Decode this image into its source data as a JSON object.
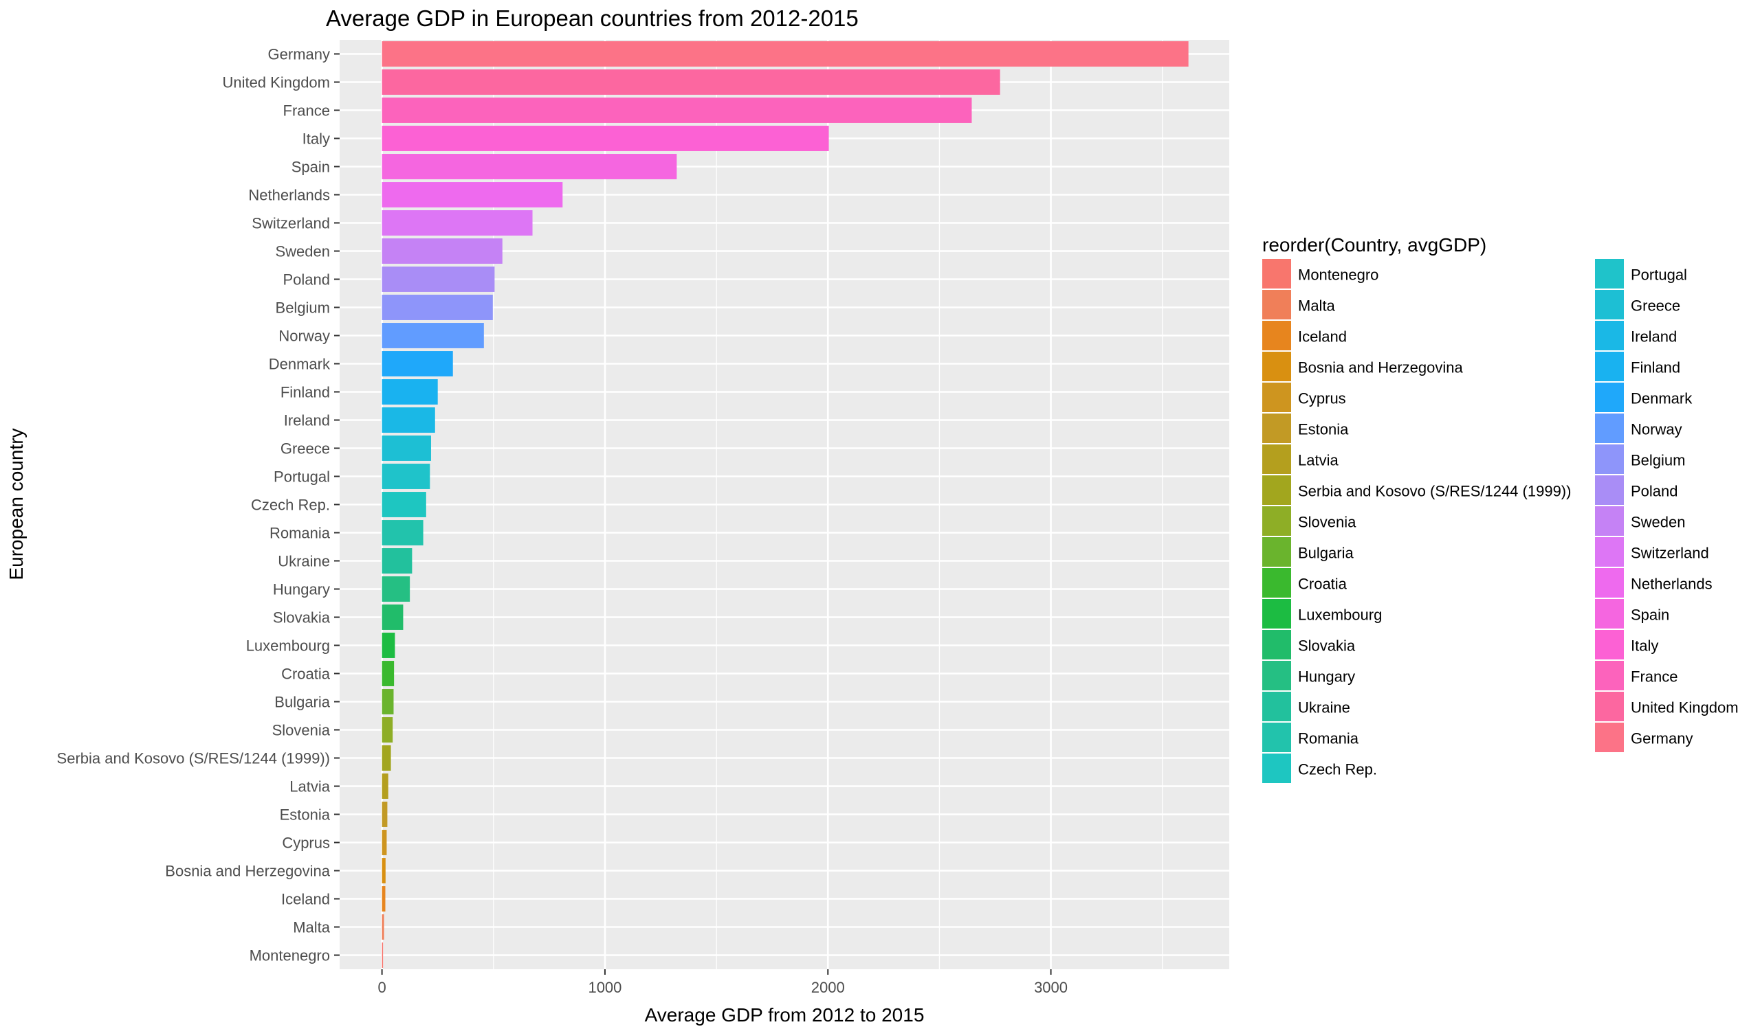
{
  "chart_data": {
    "type": "bar",
    "orientation": "horizontal",
    "title": "Average GDP in European countries from 2012-2015",
    "xlabel": "Average GDP from 2012 to 2015",
    "ylabel": "European country",
    "xlim": [
      -190,
      3800
    ],
    "x_ticks": [
      0,
      1000,
      2000,
      3000
    ],
    "x_tick_labels": [
      "0",
      "1000",
      "2000",
      "3000"
    ],
    "grid": true,
    "legend": {
      "title": "reorder(Country, avgGDP)",
      "placement": "right"
    },
    "categories": [
      "Montenegro",
      "Malta",
      "Iceland",
      "Bosnia and Herzegovina",
      "Cyprus",
      "Estonia",
      "Latvia",
      "Serbia and Kosovo (S/RES/1244 (1999))",
      "Slovenia",
      "Bulgaria",
      "Croatia",
      "Luxembourg",
      "Slovakia",
      "Hungary",
      "Ukraine",
      "Romania",
      "Czech Rep.",
      "Portugal",
      "Greece",
      "Ireland",
      "Finland",
      "Denmark",
      "Norway",
      "Belgium",
      "Poland",
      "Sweden",
      "Switzerland",
      "Netherlands",
      "Spain",
      "Italy",
      "France",
      "United Kingdom",
      "Germany"
    ],
    "values": [
      4,
      9,
      15,
      16,
      21,
      24,
      28,
      40,
      48,
      52,
      54,
      58,
      95,
      125,
      135,
      185,
      198,
      215,
      220,
      238,
      250,
      318,
      457,
      497,
      505,
      540,
      675,
      810,
      1322,
      2004,
      2645,
      2772,
      3617
    ],
    "colors": [
      "#F8766D",
      "#F07F59",
      "#E7851E",
      "#D99011",
      "#CE951F",
      "#C29A25",
      "#B49F1E",
      "#A2A61E",
      "#8EAE26",
      "#6AB42D",
      "#3AB92E",
      "#1CBC42",
      "#21BC6A",
      "#25BF83",
      "#22C19D",
      "#22C3AC",
      "#1EC6C1",
      "#1FC3CA",
      "#1DBFD4",
      "#1AB8E6",
      "#19B2F0",
      "#1FA8FA",
      "#619CFF",
      "#8E95FA",
      "#A98DF6",
      "#C582F5",
      "#DD76F5",
      "#EE6AEE",
      "#F566E0",
      "#FC61D4",
      "#FC63BC",
      "#FC67A0",
      "#FC7387"
    ]
  }
}
